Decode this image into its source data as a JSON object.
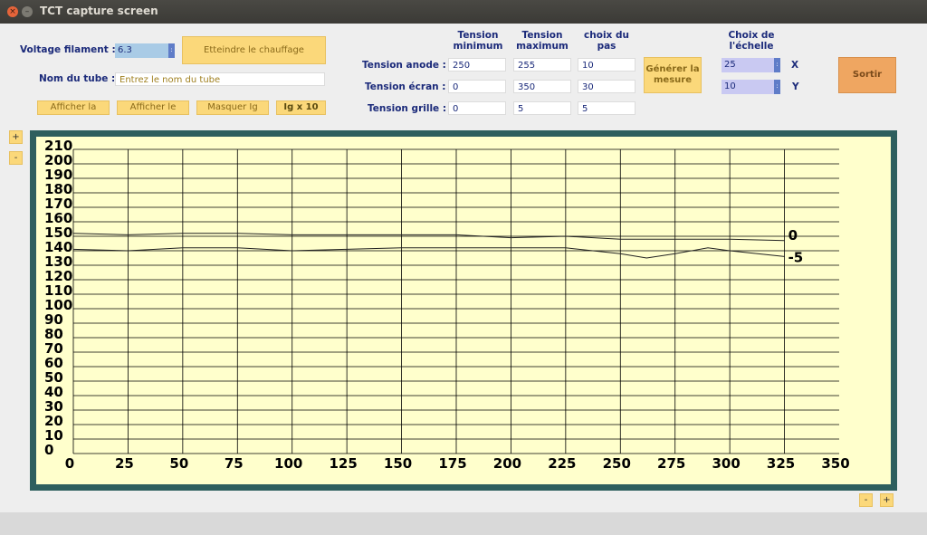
{
  "window": {
    "title": "TCT capture screen",
    "close_glyph": "×",
    "min_glyph": "–"
  },
  "filament": {
    "label": "Voltage filament :",
    "value": "6.3",
    "button": "Etteindre le chauffage"
  },
  "tube": {
    "label": "Nom du tube :",
    "placeholder": "Entrez le nom du tube"
  },
  "buttons": {
    "afficher_la": "Afficher la",
    "afficher_le": "Afficher le",
    "masquer_ig": "Masquer Ig",
    "ig_x10": "Ig x 10",
    "generer_line1": "Générer la",
    "generer_line2": "mesure",
    "sortir": "Sortir"
  },
  "table": {
    "headers": {
      "min_1": "Tension",
      "min_2": "minimum",
      "max_1": "Tension",
      "max_2": "maximum",
      "pas_1": "choix du",
      "pas_2": "pas"
    },
    "rows": [
      {
        "label": "Tension anode :",
        "min": "250",
        "max": "255",
        "pas": "10"
      },
      {
        "label": "Tension écran :",
        "min": "0",
        "max": "350",
        "pas": "30"
      },
      {
        "label": "Tension grille :",
        "min": "0",
        "max": "5",
        "pas": "5"
      }
    ]
  },
  "scale": {
    "header_1": "Choix de",
    "header_2": "l'échelle",
    "x_value": "25",
    "x_label": "X",
    "y_value": "10",
    "y_label": "Y"
  },
  "zoom": {
    "plus": "+",
    "minus": "-"
  },
  "chart_data": {
    "type": "line",
    "x_ticks": [
      "0",
      "25",
      "50",
      "75",
      "100",
      "125",
      "150",
      "175",
      "200",
      "225",
      "250",
      "275",
      "300",
      "325",
      "350"
    ],
    "y_ticks": [
      "210",
      "200",
      "190",
      "180",
      "170",
      "160",
      "150",
      "140",
      "130",
      "120",
      "110",
      "100",
      "90",
      "80",
      "70",
      "60",
      "50",
      "40",
      "30",
      "20",
      "10",
      "0"
    ],
    "xlim": [
      0,
      350
    ],
    "ylim": [
      0,
      210
    ],
    "grid": true,
    "series": [
      {
        "name": "0",
        "x": [
          0,
          25,
          50,
          75,
          100,
          125,
          150,
          175,
          200,
          225,
          250,
          275,
          300,
          325
        ],
        "y": [
          152,
          151,
          152,
          152,
          151,
          151,
          151,
          151,
          149,
          150,
          148,
          148,
          148,
          147
        ]
      },
      {
        "name": "-5",
        "x": [
          0,
          25,
          50,
          75,
          100,
          125,
          150,
          175,
          200,
          225,
          250,
          262,
          275,
          290,
          300,
          325
        ],
        "y": [
          141,
          140,
          142,
          142,
          140,
          141,
          142,
          142,
          142,
          142,
          138,
          135,
          138,
          142,
          140,
          136
        ]
      }
    ],
    "colors": {
      "line": "#222222",
      "grid": "#000000",
      "background": "#ffffcc",
      "frame": "#2e5f5e"
    }
  }
}
